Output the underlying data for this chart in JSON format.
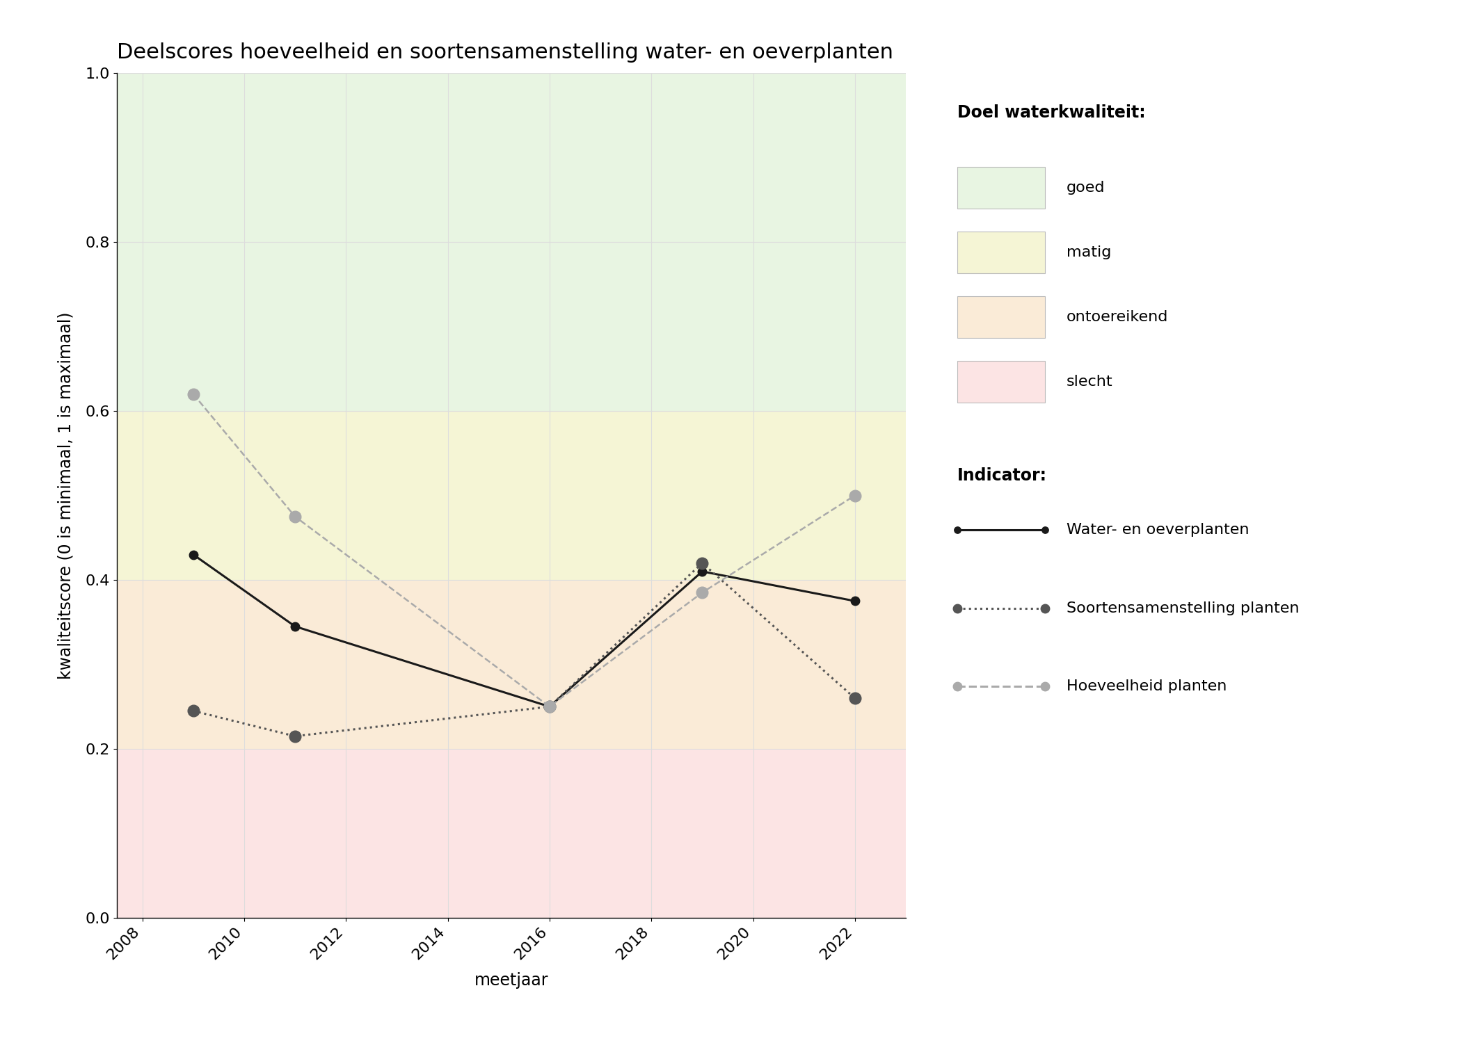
{
  "title": "Deelscores hoeveelheid en soortensamenstelling water- en oeverplanten",
  "xlabel": "meetjaar",
  "ylabel": "kwaliteitscore (0 is minimaal, 1 is maximaal)",
  "xlim": [
    2007.5,
    2023.0
  ],
  "ylim": [
    0.0,
    1.0
  ],
  "xticks": [
    2008,
    2010,
    2012,
    2014,
    2016,
    2018,
    2020,
    2022
  ],
  "yticks": [
    0.0,
    0.2,
    0.4,
    0.6,
    0.8,
    1.0
  ],
  "zone_goed": {
    "ymin": 0.6,
    "ymax": 1.0,
    "color": "#e8f5e2"
  },
  "zone_matig": {
    "ymin": 0.4,
    "ymax": 0.6,
    "color": "#f5f5d5"
  },
  "zone_ontoereikend": {
    "ymin": 0.2,
    "ymax": 0.4,
    "color": "#faebd7"
  },
  "zone_slecht": {
    "ymin": 0.0,
    "ymax": 0.2,
    "color": "#fce4e4"
  },
  "water_oever": {
    "x": [
      2009,
      2011,
      2016,
      2019,
      2022
    ],
    "y": [
      0.43,
      0.345,
      0.25,
      0.41,
      0.375
    ],
    "color": "#1a1a1a",
    "linestyle": "solid",
    "linewidth": 2.2,
    "markersize": 9,
    "label": "Water- en oeverplanten"
  },
  "soorten": {
    "x": [
      2009,
      2011,
      2016,
      2019,
      2022
    ],
    "y": [
      0.245,
      0.215,
      0.25,
      0.42,
      0.26
    ],
    "color": "#555555",
    "linestyle": "dotted",
    "linewidth": 2.2,
    "markersize": 12,
    "label": "Soortensamenstelling planten"
  },
  "hoeveelheid": {
    "x": [
      2009,
      2011,
      2016,
      2019,
      2022
    ],
    "y": [
      0.62,
      0.475,
      0.25,
      0.385,
      0.5
    ],
    "color": "#aaaaaa",
    "linestyle": "dashed",
    "linewidth": 1.8,
    "markersize": 12,
    "label": "Hoeveelheid planten"
  },
  "legend_doel_title": "Doel waterkwaliteit:",
  "legend_indicator_title": "Indicator:",
  "legend_colors": {
    "goed": "#e8f5e2",
    "matig": "#f5f5d5",
    "ontoereikend": "#faebd7",
    "slecht": "#fce4e4"
  },
  "legend_labels_doel": [
    "goed",
    "matig",
    "ontoereikend",
    "slecht"
  ],
  "grid_color": "#dddddd",
  "grid_linewidth": 0.8,
  "title_fontsize": 22,
  "axis_label_fontsize": 17,
  "tick_fontsize": 16,
  "legend_fontsize": 16
}
